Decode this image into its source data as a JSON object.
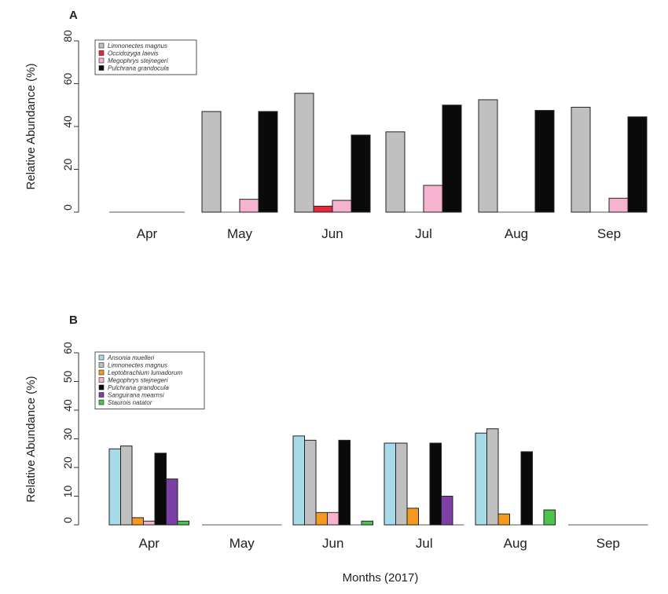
{
  "xlabel": "Months (2017)",
  "chart_data": [
    {
      "type": "bar",
      "panel": "A",
      "title": "",
      "ylabel": "Relative Abundance (%)",
      "ylim": [
        0,
        80
      ],
      "yticks": [
        0,
        20,
        40,
        60,
        80
      ],
      "categories": [
        "Apr",
        "May",
        "Jun",
        "Jul",
        "Aug",
        "Sep"
      ],
      "grid": false,
      "legend_position": "top-left",
      "series": [
        {
          "name": "Limnonectes magnus",
          "color": "#c0c0c0",
          "values": [
            0,
            47,
            55.5,
            37.5,
            52.5,
            49
          ]
        },
        {
          "name": "Occidozyga laevis",
          "color": "#e8283a",
          "values": [
            0,
            0,
            2.8,
            0,
            0,
            0
          ]
        },
        {
          "name": "Megophrys stejnegeri",
          "color": "#f5b3cf",
          "values": [
            0,
            6,
            5.5,
            12.5,
            0,
            6.5
          ]
        },
        {
          "name": "Pulchrana grandocula",
          "color": "#0a0a0a",
          "values": [
            0,
            47,
            36,
            50,
            47.5,
            44.5
          ]
        }
      ]
    },
    {
      "type": "bar",
      "panel": "B",
      "title": "",
      "ylabel": "Relative Abundance (%)",
      "ylim": [
        0,
        60
      ],
      "yticks": [
        0,
        10,
        20,
        30,
        40,
        50,
        60
      ],
      "categories": [
        "Apr",
        "May",
        "Jun",
        "Jul",
        "Aug",
        "Sep"
      ],
      "grid": false,
      "legend_position": "top-left",
      "series": [
        {
          "name": "Ansonia muelleri",
          "color": "#a8dbe8",
          "values": [
            26.5,
            0,
            31,
            28.5,
            32,
            0
          ]
        },
        {
          "name": "Limnonectes magnus",
          "color": "#c0c0c0",
          "values": [
            27.5,
            0,
            29.5,
            28.5,
            33.5,
            0
          ]
        },
        {
          "name": "Leptobrachium lumadorum",
          "color": "#f59a20",
          "values": [
            2.5,
            0,
            4.3,
            5.8,
            3.8,
            0
          ]
        },
        {
          "name": "Megophrys stejnegeri",
          "color": "#f5b3cf",
          "values": [
            1.3,
            0,
            4.3,
            0,
            0,
            0
          ]
        },
        {
          "name": "Pulchrana grandocula",
          "color": "#0a0a0a",
          "values": [
            25,
            0,
            29.5,
            28.5,
            25.5,
            0
          ]
        },
        {
          "name": "Sanguirana mearnsi",
          "color": "#7b3fa6",
          "values": [
            16,
            0,
            0,
            10,
            0,
            0
          ]
        },
        {
          "name": "Staurois natator",
          "color": "#4cc34a",
          "values": [
            1.3,
            0,
            1.3,
            0,
            5.2,
            0
          ]
        }
      ]
    }
  ]
}
